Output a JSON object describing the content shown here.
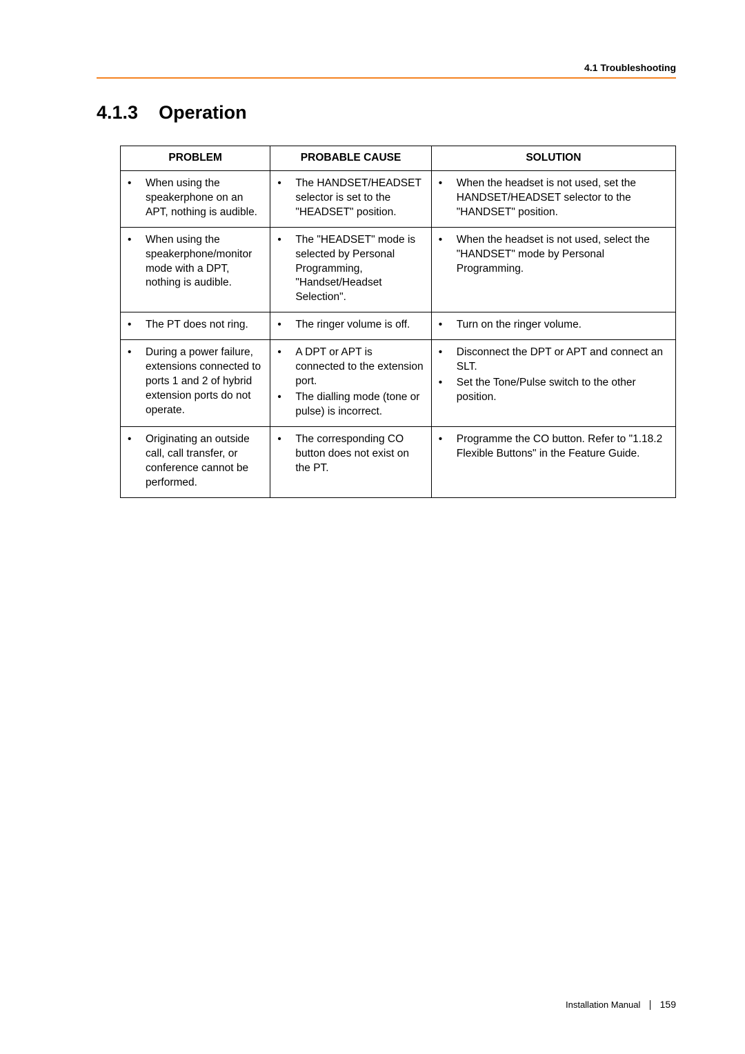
{
  "running_header": "4.1 Troubleshooting",
  "section_number": "4.1.3",
  "section_title": "Operation",
  "table": {
    "headers": [
      "PROBLEM",
      "PROBABLE CAUSE",
      "SOLUTION"
    ],
    "rows": [
      {
        "problem": [
          "When using the speakerphone on an APT, nothing is audible."
        ],
        "cause": [
          "The HANDSET/HEADSET selector is set to the \"HEADSET\" position."
        ],
        "solution": [
          "When the headset is not used, set the HANDSET/HEADSET selector to the \"HANDSET\" position."
        ]
      },
      {
        "problem": [
          "When using the speakerphone/monitor mode with a DPT, nothing is audible."
        ],
        "cause": [
          "The \"HEADSET\" mode is selected by Personal Programming, \"Handset/Headset Selection\"."
        ],
        "solution": [
          "When the headset is not used, select the \"HANDSET\" mode by Personal Programming."
        ]
      },
      {
        "problem": [
          "The PT does not ring."
        ],
        "cause": [
          "The ringer volume is off."
        ],
        "solution": [
          "Turn on the ringer volume."
        ]
      },
      {
        "problem": [
          "During a power failure, extensions connected to ports 1 and 2 of hybrid extension ports do not operate."
        ],
        "cause": [
          "A DPT or APT is connected to the extension port.",
          "The dialling mode (tone or pulse) is incorrect."
        ],
        "solution": [
          "Disconnect the DPT or APT and connect an SLT.",
          "Set the Tone/Pulse switch to the other position."
        ]
      },
      {
        "problem": [
          "Originating an outside call, call transfer, or conference cannot be performed."
        ],
        "cause": [
          "The corresponding CO button does not exist on the PT."
        ],
        "solution": [
          "Programme the CO button. Refer to \"1.18.2 Flexible Buttons\" in the Feature Guide."
        ]
      }
    ]
  },
  "footer": {
    "label": "Installation Manual",
    "page": "159"
  }
}
